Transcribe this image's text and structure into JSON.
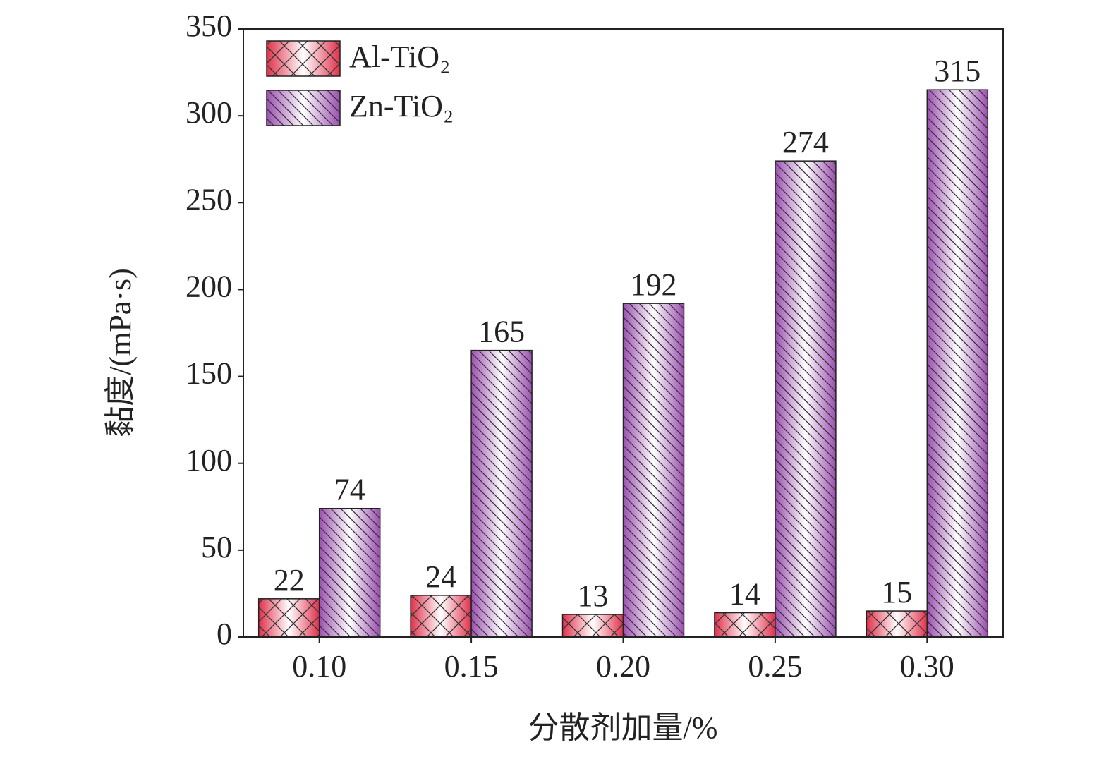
{
  "chart_data": {
    "type": "bar",
    "x_label": "分散剂加量/%",
    "y_label": "黏度/(mPa·s)",
    "categories": [
      "0.10",
      "0.15",
      "0.20",
      "0.25",
      "0.30"
    ],
    "series": [
      {
        "name": "Al-TiO₂",
        "color": "#e0304a",
        "values": [
          22,
          24,
          13,
          14,
          15
        ]
      },
      {
        "name": "Zn-TiO₂",
        "color": "#9b4fb0",
        "values": [
          74,
          165,
          192,
          274,
          315
        ]
      }
    ],
    "ylim": [
      0,
      350
    ],
    "yticks": [
      0,
      50,
      100,
      150,
      200,
      250,
      300,
      350
    ],
    "legend": "upper left"
  }
}
